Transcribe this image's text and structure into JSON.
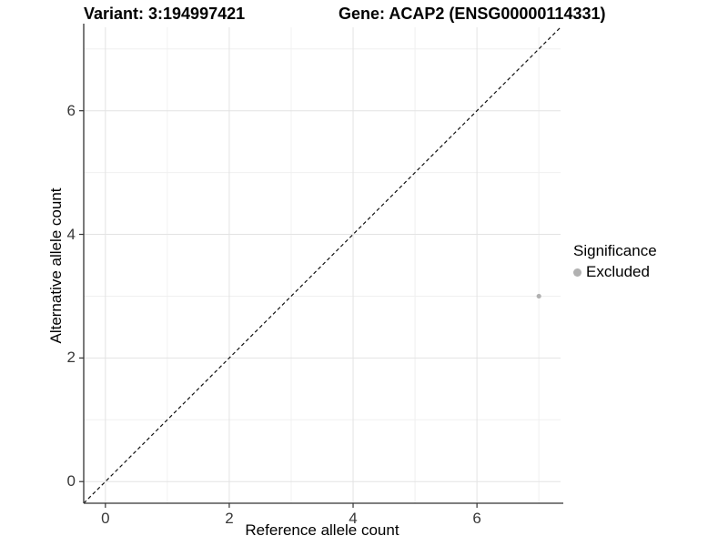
{
  "chart_data": {
    "type": "scatter",
    "title_left": "Variant: 3:194997421",
    "title_right": "Gene: ACAP2 (ENSG00000114331)",
    "xlabel": "Reference allele count",
    "ylabel": "Alternative allele count",
    "xlim": [
      -0.35,
      7.35
    ],
    "ylim": [
      -0.35,
      7.35
    ],
    "x_major_ticks": [
      0,
      2,
      4,
      6
    ],
    "x_minor_gridlines": [
      1,
      3,
      5,
      7
    ],
    "y_major_ticks": [
      0,
      2,
      4,
      6
    ],
    "y_minor_gridlines": [
      1,
      3,
      5,
      7
    ],
    "grid": true,
    "points": [
      {
        "x": 7,
        "y": 3,
        "series": "Excluded"
      }
    ],
    "reference_line": {
      "type": "identity",
      "style": "dashed",
      "from": -0.35,
      "to": 7.35
    },
    "legend": {
      "title": "Significance",
      "position": "right",
      "entries": [
        {
          "label": "Excluded",
          "color": "#b1b1b1"
        }
      ]
    },
    "colors": {
      "point": "#b1b1b1",
      "grid_major": "#e3e3e3",
      "grid_minor": "#f0f0f0",
      "axis_line": "#333333",
      "tick_mark": "#333333",
      "reference_line": "#111111",
      "background": "#ffffff"
    }
  }
}
